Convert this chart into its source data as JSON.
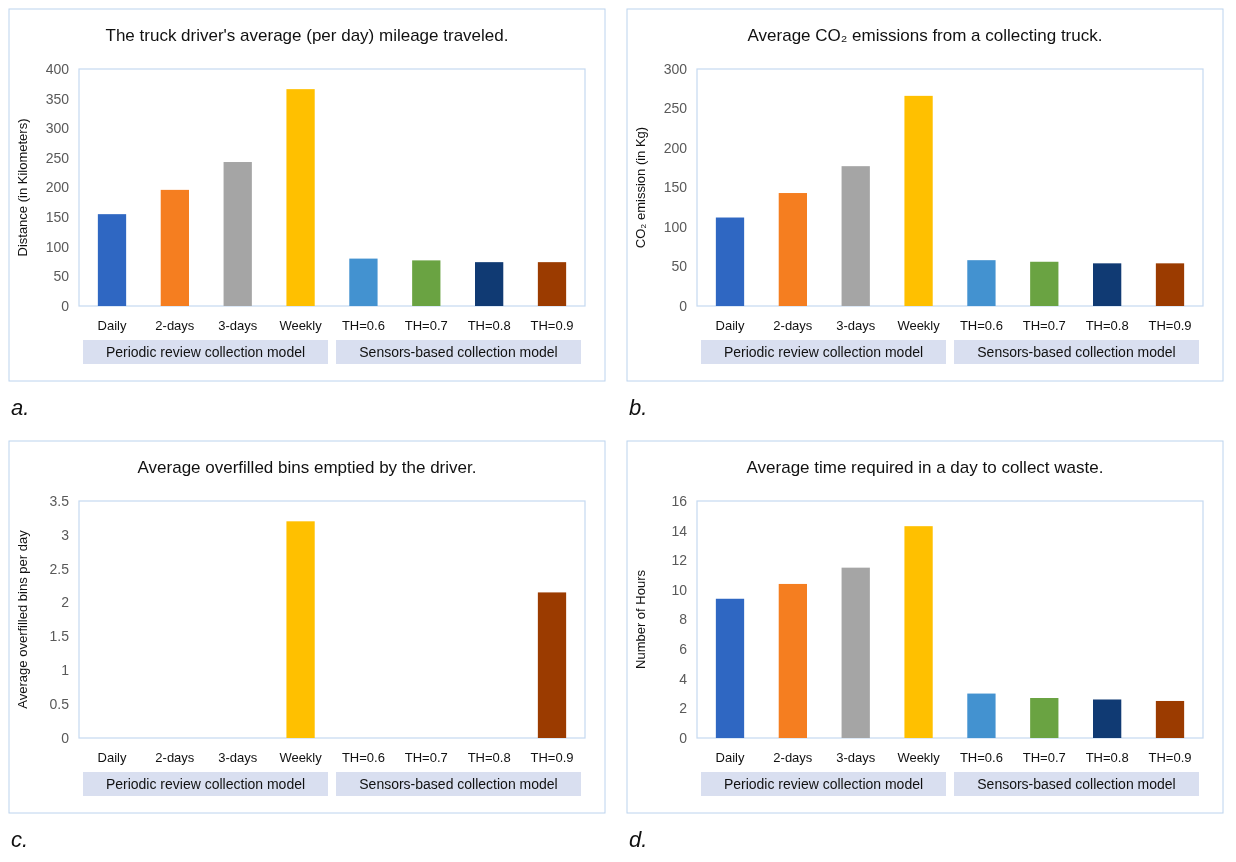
{
  "chart_data": [
    {
      "type": "bar",
      "title": "The truck driver's average (per day) mileage traveled.",
      "ylabel": "Distance (in Kilometers)",
      "categories": [
        "Daily",
        "2-days",
        "3-days",
        "Weekly",
        "TH=0.6",
        "TH=0.7",
        "TH=0.8",
        "TH=0.9"
      ],
      "values": [
        155,
        196,
        243,
        366,
        80,
        77,
        74,
        74
      ],
      "colors": [
        "#2f67c2",
        "#f57e20",
        "#a5a5a5",
        "#ffc000",
        "#4392d0",
        "#6aa342",
        "#103a73",
        "#9b3b00"
      ],
      "ylim": [
        0,
        400
      ],
      "yticks": [
        0,
        50,
        100,
        150,
        200,
        250,
        300,
        350,
        400
      ],
      "annotations": [
        "Periodic review collection model",
        "Sensors-based collection model",
        "a."
      ]
    },
    {
      "type": "bar",
      "title": "Average CO₂ emissions from a collecting truck.",
      "ylabel": "CO₂ emission (in Kg)",
      "categories": [
        "Daily",
        "2-days",
        "3-days",
        "Weekly",
        "TH=0.6",
        "TH=0.7",
        "TH=0.8",
        "TH=0.9"
      ],
      "values": [
        112,
        143,
        177,
        266,
        58,
        56,
        54,
        54
      ],
      "colors": [
        "#2f67c2",
        "#f57e20",
        "#a5a5a5",
        "#ffc000",
        "#4392d0",
        "#6aa342",
        "#103a73",
        "#9b3b00"
      ],
      "ylim": [
        0,
        300
      ],
      "yticks": [
        0,
        50,
        100,
        150,
        200,
        250,
        300
      ],
      "annotations": [
        "Periodic review collection model",
        "Sensors-based collection model",
        "b."
      ]
    },
    {
      "type": "bar",
      "title": "Average overfilled bins emptied by the driver.",
      "ylabel": "Average overfilled bins per day",
      "categories": [
        "Daily",
        "2-days",
        "3-days",
        "Weekly",
        "TH=0.6",
        "TH=0.7",
        "TH=0.8",
        "TH=0.9"
      ],
      "values": [
        0,
        0,
        0,
        3.2,
        0,
        0,
        0,
        2.15
      ],
      "colors": [
        "#2f67c2",
        "#f57e20",
        "#a5a5a5",
        "#ffc000",
        "#4392d0",
        "#6aa342",
        "#103a73",
        "#9b3b00"
      ],
      "ylim": [
        0,
        3.5
      ],
      "yticks": [
        0,
        0.5,
        1,
        1.5,
        2,
        2.5,
        3,
        3.5
      ],
      "annotations": [
        "Periodic review collection model",
        "Sensors-based collection model",
        "c."
      ]
    },
    {
      "type": "bar",
      "title": "Average time required in a day to collect waste.",
      "ylabel": "Number of Hours",
      "categories": [
        "Daily",
        "2-days",
        "3-days",
        "Weekly",
        "TH=0.6",
        "TH=0.7",
        "TH=0.8",
        "TH=0.9"
      ],
      "values": [
        9.4,
        10.4,
        11.5,
        14.3,
        3.0,
        2.7,
        2.6,
        2.5
      ],
      "colors": [
        "#2f67c2",
        "#f57e20",
        "#a5a5a5",
        "#ffc000",
        "#4392d0",
        "#6aa342",
        "#103a73",
        "#9b3b00"
      ],
      "ylim": [
        0,
        16
      ],
      "yticks": [
        0,
        2,
        4,
        6,
        8,
        10,
        12,
        14,
        16
      ],
      "annotations": [
        "Periodic review collection model",
        "Sensors-based collection model",
        "d."
      ]
    }
  ]
}
